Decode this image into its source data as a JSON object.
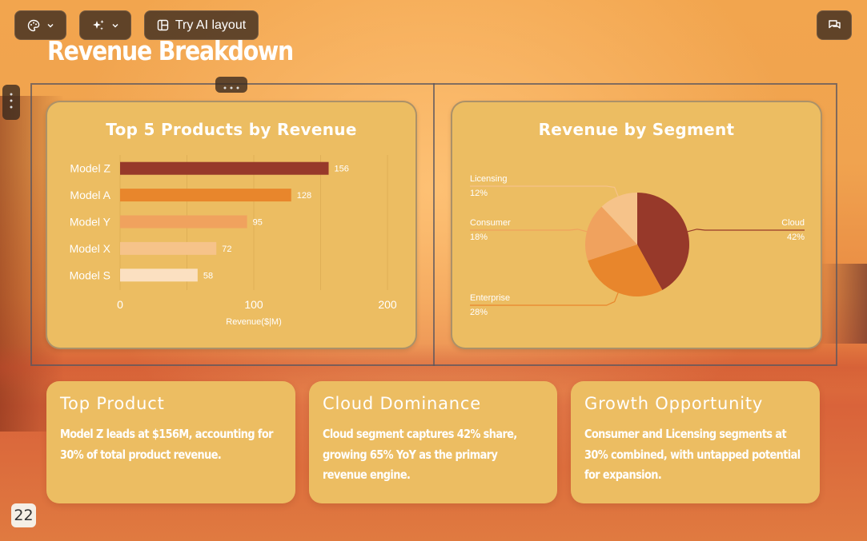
{
  "toolbar": {
    "ai_layout_label": "Try AI layout",
    "icons": [
      "palette-icon",
      "sparkle-icon",
      "layout-icon",
      "chat-icon",
      "chevron-down-icon"
    ]
  },
  "page": {
    "title": "Revenue Breakdown",
    "number": "22"
  },
  "colors": {
    "dark": "#97392a",
    "orange": "#e8862c",
    "mid": "#f0a25e",
    "light": "#f6c38a",
    "pale": "#fbe0c1",
    "card": "#ecbd62"
  },
  "chart_data": [
    {
      "type": "bar",
      "title": "Top 5 Products by Revenue",
      "categories": [
        "Model Z",
        "Model A",
        "Model Y",
        "Model X",
        "Model S"
      ],
      "values": [
        156,
        128,
        95,
        72,
        58
      ],
      "xlabel": "Revenue($|M)",
      "ylabel": "",
      "xlim": [
        0,
        200
      ],
      "x_ticks": [
        "0",
        "100",
        "200"
      ],
      "orientation": "horizontal",
      "bar_colors": [
        "#97392a",
        "#e8862c",
        "#f0a25e",
        "#f6c38a",
        "#fbe0c1"
      ]
    },
    {
      "type": "pie",
      "title": "Revenue by Segment",
      "slices": [
        {
          "label": "Cloud",
          "value": 42,
          "percent_label": "42%",
          "color": "#97392a"
        },
        {
          "label": "Enterprise",
          "value": 28,
          "percent_label": "28%",
          "color": "#e8862c"
        },
        {
          "label": "Consumer",
          "value": 18,
          "percent_label": "18%",
          "color": "#f0a25e"
        },
        {
          "label": "Licensing",
          "value": 12,
          "percent_label": "12%",
          "color": "#f6c38a"
        }
      ]
    }
  ],
  "cards": [
    {
      "title": "Top Product",
      "body": "Model Z leads at $156M, accounting for 30% of total product revenue."
    },
    {
      "title": "Cloud Dominance",
      "body": "Cloud segment captures 42% share, growing 65% YoY as the primary revenue engine."
    },
    {
      "title": "Growth Opportunity",
      "body": "Consumer and Licensing segments at 30% combined, with untapped potential for expansion."
    }
  ]
}
